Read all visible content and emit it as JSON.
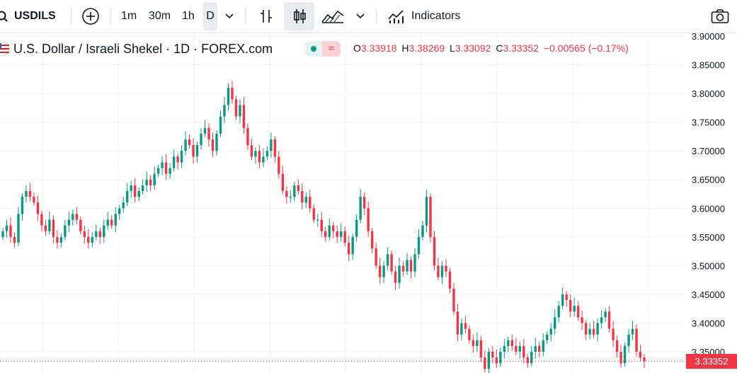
{
  "toolbar": {
    "symbol": "USDILS",
    "timeframes": [
      "1m",
      "30m",
      "1h",
      "D"
    ],
    "active_timeframe": "D",
    "indicators_label": "Indicators"
  },
  "legend": {
    "title": "U.S. Dollar / Israeli Shekel · 1D · FOREX.com",
    "wave_glyph": "≈",
    "open_key": "O",
    "open": "3.33918",
    "high_key": "H",
    "high": "3.38269",
    "low_key": "L",
    "low": "3.33092",
    "close_key": "C",
    "close": "3.33352",
    "change": "−0.00565 (−0.17%)"
  },
  "price_axis": {
    "labels": [
      "3.90000",
      "3.85000",
      "3.80000",
      "3.75000",
      "3.70000",
      "3.65000",
      "3.60000",
      "3.55000",
      "3.50000",
      "3.45000",
      "3.40000",
      "3.35000"
    ],
    "last_price": "3.33352"
  },
  "colors": {
    "up": "#089981",
    "down": "#f23645",
    "grid": "#f0f3fa"
  },
  "chart_data": {
    "type": "candlestick",
    "ylim": [
      3.32,
      3.9
    ],
    "closes": [
      3.56,
      3.57,
      3.55,
      3.54,
      3.59,
      3.62,
      3.63,
      3.62,
      3.61,
      3.59,
      3.57,
      3.56,
      3.58,
      3.55,
      3.54,
      3.55,
      3.57,
      3.58,
      3.59,
      3.58,
      3.56,
      3.55,
      3.54,
      3.55,
      3.56,
      3.55,
      3.57,
      3.58,
      3.57,
      3.59,
      3.6,
      3.61,
      3.63,
      3.64,
      3.62,
      3.63,
      3.64,
      3.65,
      3.64,
      3.66,
      3.67,
      3.68,
      3.66,
      3.67,
      3.69,
      3.68,
      3.7,
      3.72,
      3.71,
      3.69,
      3.71,
      3.73,
      3.74,
      3.72,
      3.7,
      3.73,
      3.76,
      3.78,
      3.81,
      3.79,
      3.76,
      3.78,
      3.74,
      3.71,
      3.69,
      3.7,
      3.68,
      3.69,
      3.7,
      3.72,
      3.69,
      3.66,
      3.63,
      3.62,
      3.62,
      3.64,
      3.63,
      3.61,
      3.62,
      3.6,
      3.58,
      3.58,
      3.56,
      3.55,
      3.57,
      3.56,
      3.55,
      3.56,
      3.54,
      3.52,
      3.55,
      3.58,
      3.62,
      3.6,
      3.56,
      3.53,
      3.5,
      3.48,
      3.5,
      3.52,
      3.49,
      3.47,
      3.5,
      3.49,
      3.51,
      3.49,
      3.52,
      3.55,
      3.57,
      3.62,
      3.55,
      3.5,
      3.48,
      3.5,
      3.49,
      3.46,
      3.42,
      3.38,
      3.4,
      3.39,
      3.37,
      3.36,
      3.37,
      3.34,
      3.32,
      3.35,
      3.34,
      3.33,
      3.35,
      3.36,
      3.37,
      3.36,
      3.35,
      3.36,
      3.34,
      3.33,
      3.35,
      3.36,
      3.35,
      3.37,
      3.38,
      3.39,
      3.41,
      3.43,
      3.45,
      3.44,
      3.42,
      3.43,
      3.41,
      3.4,
      3.38,
      3.39,
      3.38,
      3.4,
      3.41,
      3.42,
      3.39,
      3.37,
      3.35,
      3.33,
      3.36,
      3.38,
      3.39,
      3.35,
      3.34,
      3.33352
    ]
  }
}
